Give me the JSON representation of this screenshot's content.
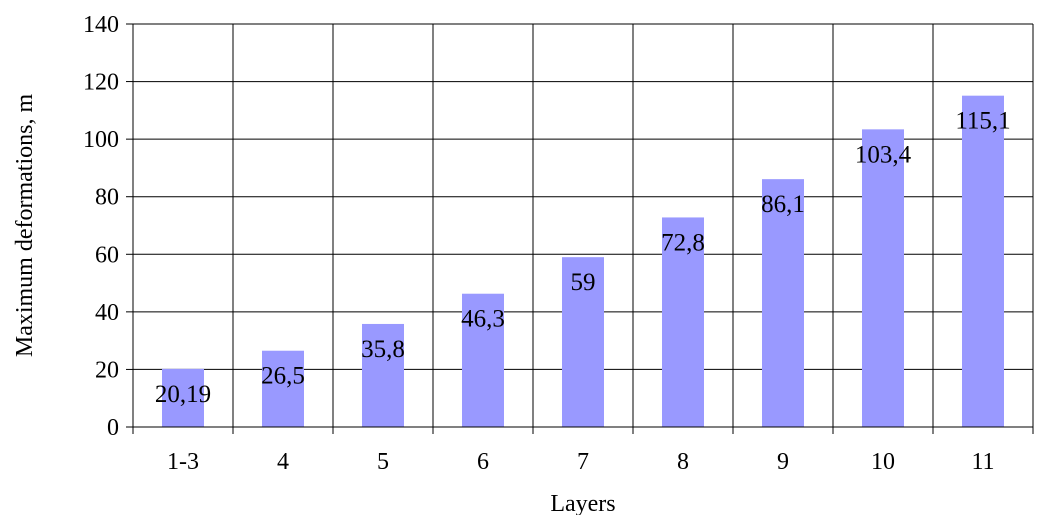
{
  "chart_data": {
    "type": "bar",
    "title": "",
    "xlabel": "Layers",
    "ylabel": "Maximum deformations, m",
    "categories": [
      "1-3",
      "4",
      "5",
      "6",
      "7",
      "8",
      "9",
      "10",
      "11"
    ],
    "values": [
      20.19,
      26.5,
      35.8,
      46.3,
      59,
      72.8,
      86.1,
      103.4,
      115.1
    ],
    "data_labels": [
      "20,19",
      "26,5",
      "35,8",
      "46,3",
      "59",
      "72,8",
      "86,1",
      "103,4",
      "115,1"
    ],
    "ylim": [
      0,
      140
    ],
    "yticks": [
      0,
      20,
      40,
      60,
      80,
      100,
      120,
      140
    ],
    "grid": true,
    "legend": "none",
    "bar_color": "#9999ff",
    "grid_color": "#000000"
  }
}
